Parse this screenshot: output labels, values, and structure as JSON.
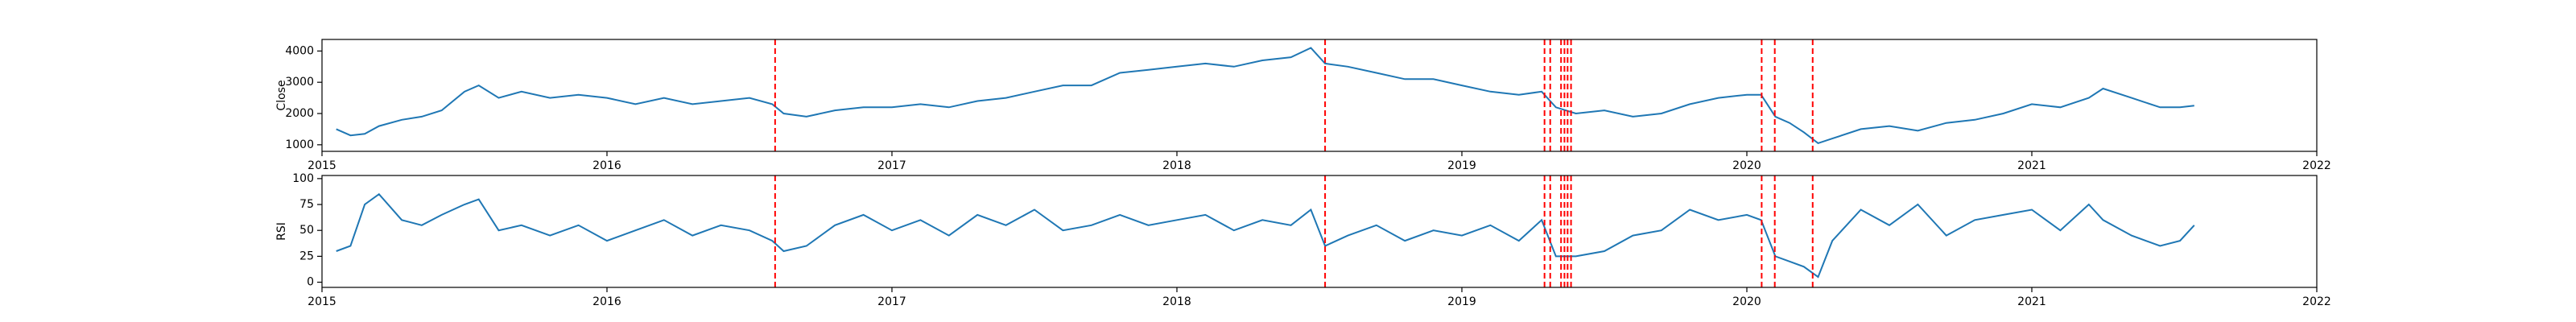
{
  "chart_data": [
    {
      "type": "line",
      "ylabel": "Close",
      "color": "#1f77b4",
      "x": [
        2015.05,
        2015.1,
        2015.15,
        2015.2,
        2015.28,
        2015.35,
        2015.42,
        2015.5,
        2015.55,
        2015.62,
        2015.7,
        2015.8,
        2015.9,
        2016.0,
        2016.1,
        2016.2,
        2016.3,
        2016.4,
        2016.5,
        2016.58,
        2016.62,
        2016.7,
        2016.8,
        2016.9,
        2017.0,
        2017.1,
        2017.2,
        2017.3,
        2017.4,
        2017.5,
        2017.6,
        2017.7,
        2017.8,
        2017.9,
        2018.0,
        2018.1,
        2018.2,
        2018.3,
        2018.4,
        2018.47,
        2018.52,
        2018.6,
        2018.7,
        2018.8,
        2018.9,
        2019.0,
        2019.1,
        2019.2,
        2019.28,
        2019.33,
        2019.4,
        2019.5,
        2019.6,
        2019.7,
        2019.8,
        2019.9,
        2020.0,
        2020.05,
        2020.1,
        2020.15,
        2020.2,
        2020.25,
        2020.3,
        2020.4,
        2020.5,
        2020.6,
        2020.7,
        2020.8,
        2020.9,
        2021.0,
        2021.1,
        2021.2,
        2021.25,
        2021.35,
        2021.45,
        2021.52,
        2021.57
      ],
      "values": [
        1500,
        1300,
        1350,
        1600,
        1800,
        1900,
        2100,
        2700,
        2900,
        2500,
        2700,
        2500,
        2600,
        2500,
        2300,
        2500,
        2300,
        2400,
        2500,
        2300,
        2000,
        1900,
        2100,
        2200,
        2200,
        2300,
        2200,
        2400,
        2500,
        2700,
        2900,
        2900,
        3300,
        3400,
        3500,
        3600,
        3500,
        3700,
        3800,
        4100,
        3600,
        3500,
        3300,
        3100,
        3100,
        2900,
        2700,
        2600,
        2700,
        2200,
        2000,
        2100,
        1900,
        2000,
        2300,
        2500,
        2600,
        2600,
        1900,
        1700,
        1400,
        1050,
        1200,
        1500,
        1600,
        1450,
        1700,
        1800,
        2000,
        2300,
        2200,
        2500,
        2800,
        2500,
        2200,
        2200,
        2250
      ],
      "xlim": [
        2015,
        2022
      ],
      "xticks": [
        2015,
        2016,
        2017,
        2018,
        2019,
        2020,
        2021,
        2022
      ],
      "ylim": [
        790,
        4370
      ],
      "yticks": [
        1000,
        2000,
        3000,
        4000
      ],
      "vlines": [
        2016.59,
        2018.52,
        2019.29,
        2019.31,
        2019.348,
        2019.36,
        2019.371,
        2019.383,
        2020.052,
        2020.098,
        2020.231
      ],
      "vline_color": "#ff0000"
    },
    {
      "type": "line",
      "ylabel": "RSI",
      "color": "#1f77b4",
      "x": [
        2015.05,
        2015.1,
        2015.15,
        2015.2,
        2015.28,
        2015.35,
        2015.42,
        2015.5,
        2015.55,
        2015.62,
        2015.7,
        2015.8,
        2015.9,
        2016.0,
        2016.1,
        2016.2,
        2016.3,
        2016.4,
        2016.5,
        2016.58,
        2016.62,
        2016.7,
        2016.8,
        2016.9,
        2017.0,
        2017.1,
        2017.2,
        2017.3,
        2017.4,
        2017.5,
        2017.6,
        2017.7,
        2017.8,
        2017.9,
        2018.0,
        2018.1,
        2018.2,
        2018.3,
        2018.4,
        2018.47,
        2018.52,
        2018.6,
        2018.7,
        2018.8,
        2018.9,
        2019.0,
        2019.1,
        2019.2,
        2019.28,
        2019.33,
        2019.4,
        2019.5,
        2019.6,
        2019.7,
        2019.8,
        2019.9,
        2020.0,
        2020.05,
        2020.1,
        2020.15,
        2020.2,
        2020.25,
        2020.3,
        2020.4,
        2020.5,
        2020.6,
        2020.7,
        2020.8,
        2020.9,
        2021.0,
        2021.1,
        2021.2,
        2021.25,
        2021.35,
        2021.45,
        2021.52,
        2021.57
      ],
      "values": [
        30,
        35,
        75,
        85,
        60,
        55,
        65,
        75,
        80,
        50,
        55,
        45,
        55,
        40,
        50,
        60,
        45,
        55,
        50,
        40,
        30,
        35,
        55,
        65,
        50,
        60,
        45,
        65,
        55,
        70,
        50,
        55,
        65,
        55,
        60,
        65,
        50,
        60,
        55,
        70,
        35,
        45,
        55,
        40,
        50,
        45,
        55,
        40,
        60,
        25,
        25,
        30,
        45,
        50,
        70,
        60,
        65,
        60,
        25,
        20,
        15,
        5,
        40,
        70,
        55,
        75,
        45,
        60,
        65,
        70,
        50,
        75,
        60,
        45,
        35,
        40,
        55
      ],
      "xlim": [
        2015,
        2022
      ],
      "xticks": [
        2015,
        2016,
        2017,
        2018,
        2019,
        2020,
        2021,
        2022
      ],
      "ylim": [
        -5,
        103
      ],
      "yticks": [
        0,
        25,
        50,
        75,
        100
      ],
      "vlines": [
        2016.59,
        2018.52,
        2019.29,
        2019.31,
        2019.348,
        2019.36,
        2019.371,
        2019.383,
        2020.052,
        2020.098,
        2020.231
      ],
      "vline_color": "#ff0000"
    }
  ]
}
